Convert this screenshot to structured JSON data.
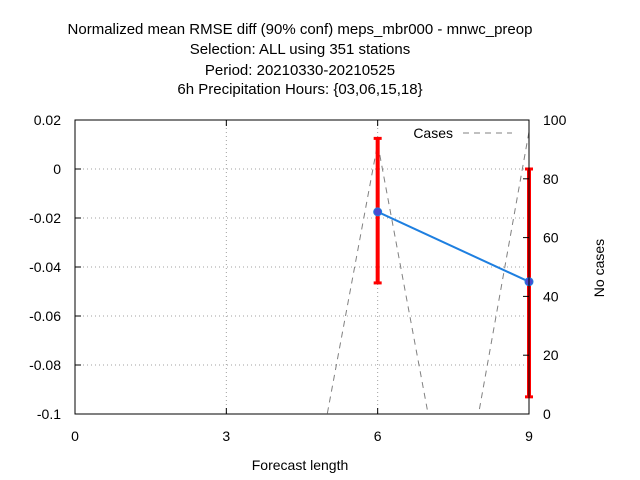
{
  "chart_data": {
    "type": "line",
    "title_lines": [
      "Normalized mean RMSE diff (90% conf) meps_mbr000 - mnwc_preop",
      "Selection: ALL using   351 stations",
      "Period: 20210330-20210525",
      "6h Precipitation    Hours: {03,06,15,18}"
    ],
    "xlabel": "Forecast length",
    "ylabel": "",
    "y2label": "No cases",
    "xlim": [
      0,
      9
    ],
    "ylim": [
      -0.1,
      0.02
    ],
    "y2lim": [
      0,
      100
    ],
    "xticks": [
      "0",
      "3",
      "6",
      "9"
    ],
    "yticks": [
      "0.02",
      "0",
      "-0.02",
      "-0.04",
      "-0.06",
      "-0.08",
      "-0.1"
    ],
    "y2ticks": [
      "100",
      "80",
      "60",
      "40",
      "20",
      "0"
    ],
    "grid": true,
    "legend_position": "top-right",
    "series": [
      {
        "color": "#1e7fe0",
        "x": [
          6,
          9
        ],
        "y": [
          -0.0175,
          -0.046
        ],
        "ci_low": [
          -0.0465,
          -0.093
        ],
        "ci_high": [
          0.0125,
          0.0
        ]
      },
      {
        "name": "Cases",
        "axis": "y2",
        "style": "dashed",
        "color": "#808080",
        "x": [
          0,
          1,
          2,
          3,
          4,
          5,
          6,
          7,
          8,
          9
        ],
        "y": [
          0,
          0,
          0,
          0,
          0,
          0,
          92,
          0,
          0,
          96
        ]
      }
    ],
    "errorbar_color": "#ff0000",
    "marker_color": "#4a4ad0"
  }
}
